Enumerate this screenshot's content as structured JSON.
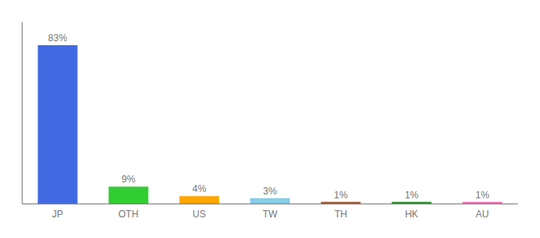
{
  "chart_data": {
    "type": "bar",
    "categories": [
      "JP",
      "OTH",
      "US",
      "TW",
      "TH",
      "HK",
      "AU"
    ],
    "values": [
      83,
      9,
      4,
      3,
      1,
      1,
      1
    ],
    "value_labels": [
      "83%",
      "9%",
      "4%",
      "3%",
      "1%",
      "1%",
      "1%"
    ],
    "colors": [
      "#4169E1",
      "#32CD32",
      "#FFA500",
      "#87CEEB",
      "#A0522D",
      "#228B22",
      "#FF69B4"
    ],
    "ylim": [
      0,
      95
    ],
    "data_labels": true,
    "tick_labels": "x",
    "grid": false
  }
}
